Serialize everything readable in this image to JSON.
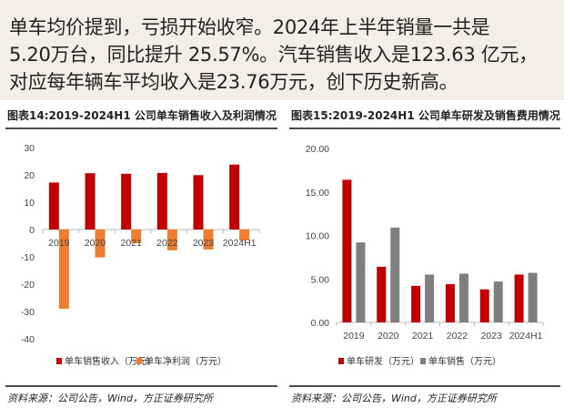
{
  "intro": {
    "lines": [
      "单车均价提到，亏损开始收窄。2024年上半年销量一共是",
      "5.20万台，同比提升 25.57%。汽车销售收入是123.63 亿元，",
      "对应每年辆车平均收入是23.76万元，创下历史新高。"
    ],
    "background": "#f3eee6"
  },
  "chart_data": [
    {
      "type": "bar",
      "title": "图表14:2019-2024H1 公司单车销售收入及利润情况",
      "categories": [
        "2019",
        "2020",
        "2021",
        "2022",
        "2023",
        "2024H1"
      ],
      "series": [
        {
          "name": "单车销售收入（万元）",
          "color": "#c00000",
          "values": [
            17.2,
            20.6,
            20.4,
            20.7,
            19.9,
            23.76
          ]
        },
        {
          "name": "单车净利润（万元）",
          "color": "#ed7d31",
          "values": [
            -29.0,
            -10.2,
            -5.0,
            -7.6,
            -7.3,
            -4.0
          ]
        }
      ],
      "ylim": [
        -40,
        30
      ],
      "yticks": [
        "30",
        "20",
        "10",
        "0",
        "-10",
        "-20",
        "-30",
        "-40"
      ],
      "grid": false,
      "legend": "bottom",
      "source": "资料来源：公司公告，Wind，方正证券研究所"
    },
    {
      "type": "bar",
      "title": "图表15:2019-2024H1 公司单车研发及销售费用情况",
      "categories": [
        "2019",
        "2020",
        "2021",
        "2022",
        "2023",
        "2024H1"
      ],
      "series": [
        {
          "name": "单车研发（万元）",
          "color": "#c00000",
          "values": [
            16.4,
            6.4,
            4.2,
            4.4,
            3.8,
            5.5
          ]
        },
        {
          "name": "单车销售（万元）",
          "color": "#7f7f7f",
          "values": [
            9.2,
            10.9,
            5.5,
            5.6,
            4.7,
            5.7
          ]
        }
      ],
      "ylim": [
        0,
        20
      ],
      "yticks": [
        "20.00",
        "15.00",
        "10.00",
        "5.00",
        "0.00"
      ],
      "grid": false,
      "legend": "bottom",
      "source": "资料来源：公司公告，Wind，方正证券研究所"
    }
  ]
}
